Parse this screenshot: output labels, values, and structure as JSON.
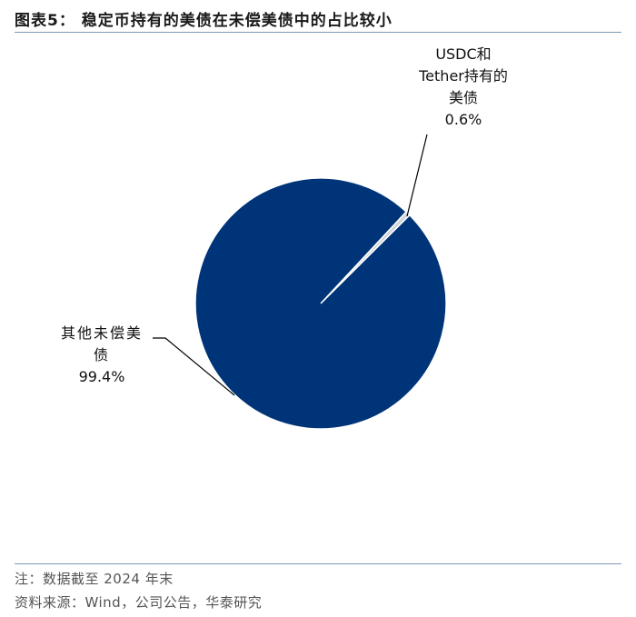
{
  "chart_data": {
    "type": "pie",
    "title": "图表5：  稳定币持有的美债在未偿美债中的占比较小",
    "categories": [
      "USDC和Tether持有的美债",
      "其他未偿美债"
    ],
    "values": [
      0.6,
      99.4
    ],
    "value_labels": [
      "0.6%",
      "99.4%"
    ],
    "colors": [
      "#d0d3d8",
      "#003478"
    ]
  },
  "notes": [
    "注：数据截至 2024 年末",
    "资料来源：Wind，公司公告，华泰研究"
  ]
}
